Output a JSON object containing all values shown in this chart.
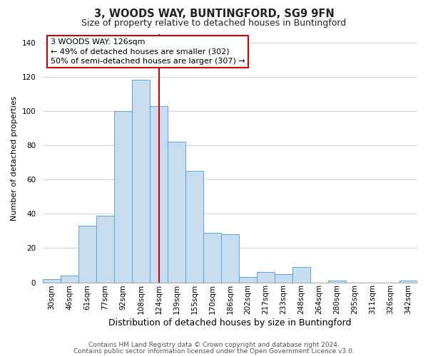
{
  "title": "3, WOODS WAY, BUNTINGFORD, SG9 9FN",
  "subtitle": "Size of property relative to detached houses in Buntingford",
  "xlabel": "Distribution of detached houses by size in Buntingford",
  "ylabel": "Number of detached properties",
  "bar_labels": [
    "30sqm",
    "46sqm",
    "61sqm",
    "77sqm",
    "92sqm",
    "108sqm",
    "124sqm",
    "139sqm",
    "155sqm",
    "170sqm",
    "186sqm",
    "202sqm",
    "217sqm",
    "233sqm",
    "248sqm",
    "264sqm",
    "280sqm",
    "295sqm",
    "311sqm",
    "326sqm",
    "342sqm"
  ],
  "bar_values": [
    2,
    4,
    33,
    39,
    100,
    118,
    103,
    82,
    65,
    29,
    28,
    3,
    6,
    5,
    9,
    0,
    1,
    0,
    0,
    0,
    1
  ],
  "bar_color": "#c9ddf0",
  "bar_edge_color": "#6aaad4",
  "vline_x_index": 6.0,
  "vline_color": "#cc0000",
  "ylim": [
    0,
    145
  ],
  "yticks": [
    0,
    20,
    40,
    60,
    80,
    100,
    120,
    140
  ],
  "annotation_text": "3 WOODS WAY: 126sqm\n← 49% of detached houses are smaller (302)\n50% of semi-detached houses are larger (307) →",
  "annotation_box_edge_color": "#cc0000",
  "annotation_box_face_color": "#ffffff",
  "footer_line1": "Contains HM Land Registry data © Crown copyright and database right 2024.",
  "footer_line2": "Contains public sector information licensed under the Open Government Licence v3.0.",
  "title_fontsize": 10.5,
  "subtitle_fontsize": 9,
  "xlabel_fontsize": 9,
  "ylabel_fontsize": 8,
  "tick_fontsize": 7.5,
  "annotation_fontsize": 8,
  "footer_fontsize": 6.5
}
